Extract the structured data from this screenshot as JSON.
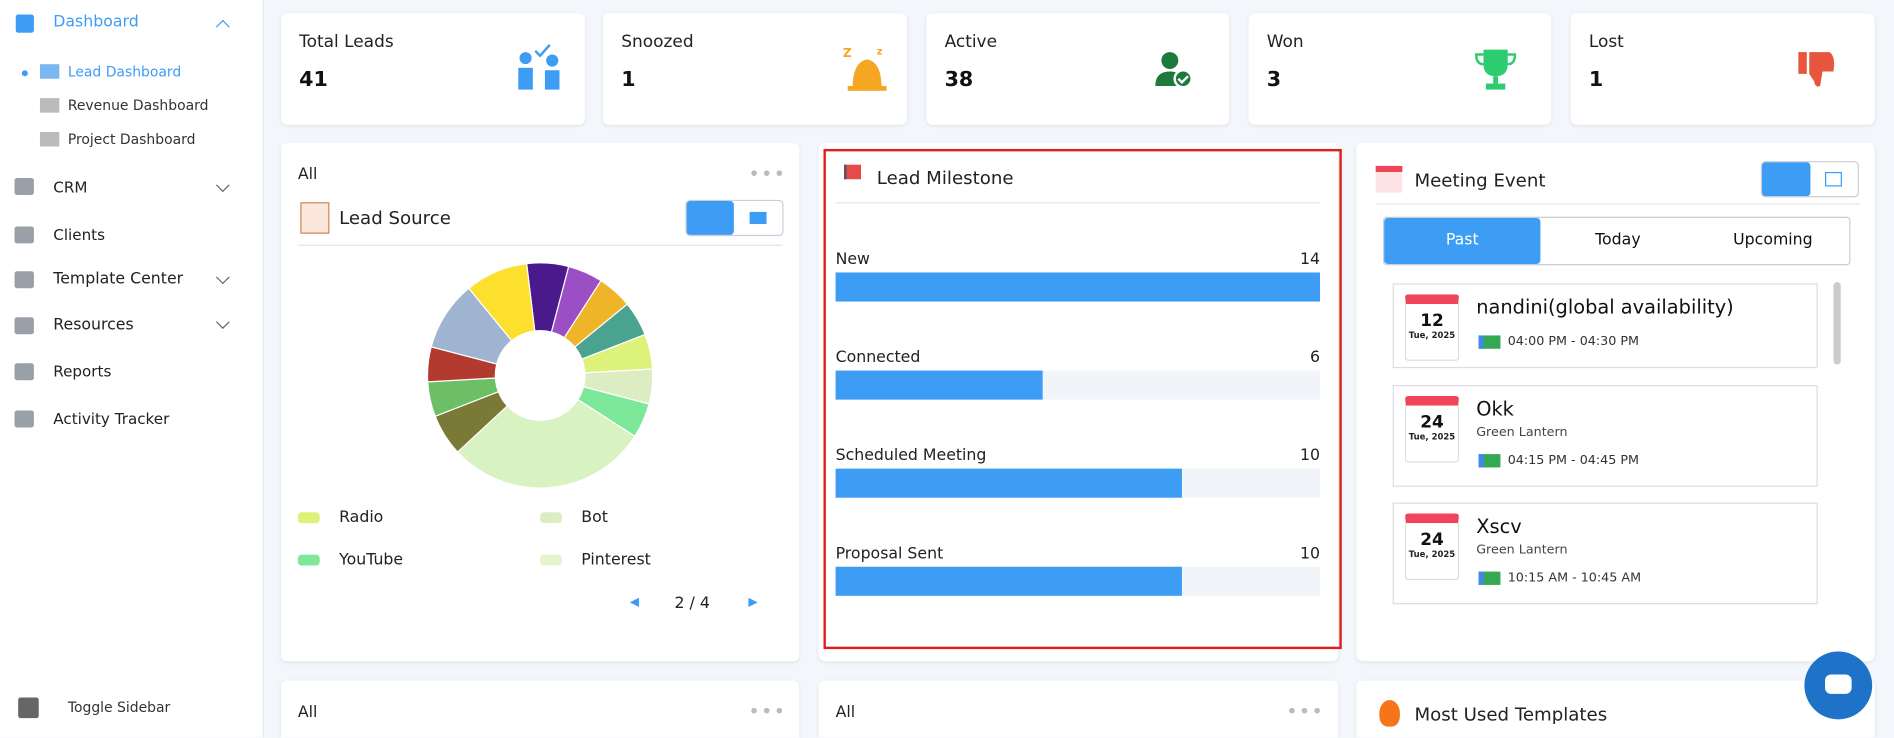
{
  "sidebar": {
    "items": [
      "Dashboard",
      "CRM",
      "Clients",
      "Template Center",
      "Resources",
      "Reports",
      "Activity Tracker"
    ],
    "sub_items": [
      "Lead Dashboard",
      "Revenue Dashboard",
      "Project Dashboard"
    ],
    "toggle": "Toggle Sidebar"
  },
  "stats": [
    {
      "label": "Total Leads",
      "value": 41
    },
    {
      "label": "Snoozed",
      "value": 1
    },
    {
      "label": "Active",
      "value": 38
    },
    {
      "label": "Won",
      "value": 3
    },
    {
      "label": "Lost",
      "value": 1
    }
  ],
  "chart_data": [
    {
      "type": "donut",
      "filter": "All",
      "title": "Lead Source",
      "values": [
        6,
        5,
        5,
        5,
        5,
        5,
        5,
        29,
        6,
        5,
        5,
        10,
        9
      ],
      "colors": [
        "#4a1a8c",
        "#9b4fc4",
        "#f0b429",
        "#4aa391",
        "#dcf27a",
        "#dcedc4",
        "#7ee89a",
        "#d8f2c2",
        "#7a7a36",
        "#6cbf64",
        "#b23a2e",
        "#9fb4d0",
        "#fde02e"
      ],
      "legend": [
        {
          "name": "Radio",
          "color": "#dcf27a"
        },
        {
          "name": "Bot",
          "color": "#dcedc4"
        },
        {
          "name": "YouTube",
          "color": "#7ee89a"
        },
        {
          "name": "Pinterest",
          "color": "#e2f5cc"
        }
      ],
      "page": "2 / 4"
    },
    {
      "type": "bar",
      "title": "Lead Milestone",
      "categories": [
        "New",
        "Connected",
        "Scheduled Meeting",
        "Proposal Sent"
      ],
      "values": [
        14,
        6,
        10,
        10
      ],
      "xlim": [
        0,
        14
      ],
      "color": "#3d9df5"
    }
  ],
  "meetings": {
    "title": "Meeting Event",
    "tabs": [
      "Past",
      "Today",
      "Upcoming"
    ],
    "events": [
      {
        "day": 12,
        "date": "Tue, 2025",
        "title": "nandini(global availability)",
        "time": "04:00 PM - 04:30 PM"
      },
      {
        "day": 24,
        "date": "Tue, 2025",
        "title": "Okk",
        "subtitle": "Green Lantern",
        "time": "04:15 PM - 04:45 PM"
      },
      {
        "day": 24,
        "date": "Tue, 2025",
        "title": "Xscv",
        "subtitle": "Green Lantern",
        "time": "10:15 AM - 10:45 AM"
      }
    ]
  },
  "bottom": {
    "filter_1": "All",
    "filter_2": "All",
    "templates_title": "Most Used Templates"
  }
}
